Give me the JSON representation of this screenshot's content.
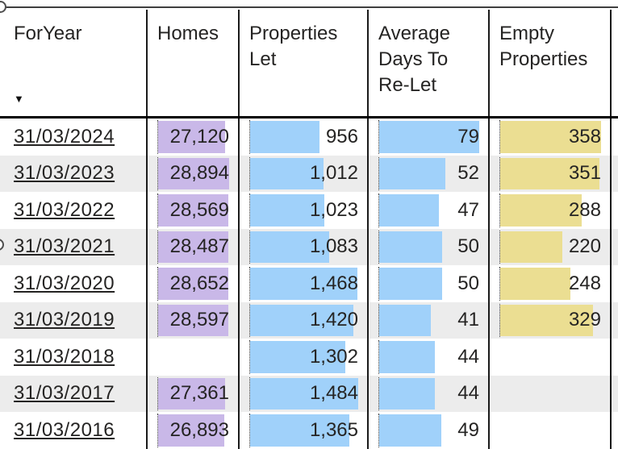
{
  "table": {
    "columns": [
      {
        "label": "ForYear",
        "sort_indicator": "▼",
        "sorted": "descending"
      },
      {
        "label": "Homes"
      },
      {
        "label": "Properties Let"
      },
      {
        "label": "Average Days To Re-Let"
      },
      {
        "label": "Empty Properties"
      },
      {
        "label": ""
      }
    ],
    "bar_columns": [
      {
        "key": "homes",
        "max": 28894,
        "color": "#C9B8E8"
      },
      {
        "key": "let",
        "max": 1484,
        "color": "#A0D1FA"
      },
      {
        "key": "days",
        "max": 79,
        "color": "#A0D1FA"
      },
      {
        "key": "empty",
        "max": 358,
        "color": "#EBDE92"
      }
    ],
    "rows": [
      {
        "year": "31/03/2024",
        "homes": 27120,
        "homes_text": "27,120",
        "let": 956,
        "let_text": "956",
        "days": 79,
        "days_text": "79",
        "empty": 358,
        "empty_text": "358"
      },
      {
        "year": "31/03/2023",
        "homes": 28894,
        "homes_text": "28,894",
        "let": 1012,
        "let_text": "1,012",
        "days": 52,
        "days_text": "52",
        "empty": 351,
        "empty_text": "351"
      },
      {
        "year": "31/03/2022",
        "homes": 28569,
        "homes_text": "28,569",
        "let": 1023,
        "let_text": "1,023",
        "days": 47,
        "days_text": "47",
        "empty": 288,
        "empty_text": "288"
      },
      {
        "year": "31/03/2021",
        "homes": 28487,
        "homes_text": "28,487",
        "let": 1083,
        "let_text": "1,083",
        "days": 50,
        "days_text": "50",
        "empty": 220,
        "empty_text": "220"
      },
      {
        "year": "31/03/2020",
        "homes": 28652,
        "homes_text": "28,652",
        "let": 1468,
        "let_text": "1,468",
        "days": 50,
        "days_text": "50",
        "empty": 248,
        "empty_text": "248"
      },
      {
        "year": "31/03/2019",
        "homes": 28597,
        "homes_text": "28,597",
        "let": 1420,
        "let_text": "1,420",
        "days": 41,
        "days_text": "41",
        "empty": 329,
        "empty_text": "329"
      },
      {
        "year": "31/03/2018",
        "homes": null,
        "homes_text": "",
        "let": 1302,
        "let_text": "1,302",
        "days": 44,
        "days_text": "44",
        "empty": null,
        "empty_text": ""
      },
      {
        "year": "31/03/2017",
        "homes": 27361,
        "homes_text": "27,361",
        "let": 1484,
        "let_text": "1,484",
        "days": 44,
        "days_text": "44",
        "empty": null,
        "empty_text": ""
      },
      {
        "year": "31/03/2016",
        "homes": 26893,
        "homes_text": "26,893",
        "let": 1365,
        "let_text": "1,365",
        "days": 49,
        "days_text": "49",
        "empty": null,
        "empty_text": ""
      }
    ]
  },
  "colors": {
    "homes_bar": "#C9B8E8",
    "properties_let_bar": "#A0D1FA",
    "avg_days_bar": "#A0D1FA",
    "empty_properties_bar": "#EBDE92",
    "banded_row": "#ECECEC",
    "text": "#252423",
    "gridline": "#1a1a1a",
    "selection_frame": "#3f3f3f"
  },
  "chart_data": {
    "type": "table",
    "title": "",
    "categories": [
      "31/03/2024",
      "31/03/2023",
      "31/03/2022",
      "31/03/2021",
      "31/03/2020",
      "31/03/2019",
      "31/03/2018",
      "31/03/2017",
      "31/03/2016"
    ],
    "series": [
      {
        "name": "Homes",
        "values": [
          27120,
          28894,
          28569,
          28487,
          28652,
          28597,
          null,
          27361,
          26893
        ]
      },
      {
        "name": "Properties Let",
        "values": [
          956,
          1012,
          1023,
          1083,
          1468,
          1420,
          1302,
          1484,
          1365
        ]
      },
      {
        "name": "Average Days To Re-Let",
        "values": [
          79,
          52,
          47,
          50,
          50,
          41,
          44,
          44,
          49
        ]
      },
      {
        "name": "Empty Properties",
        "values": [
          358,
          351,
          288,
          220,
          248,
          329,
          null,
          null,
          null
        ]
      }
    ],
    "layout_hints": {
      "data_bars": true,
      "banded_rows": true,
      "sorted_by": "ForYear descending"
    }
  }
}
